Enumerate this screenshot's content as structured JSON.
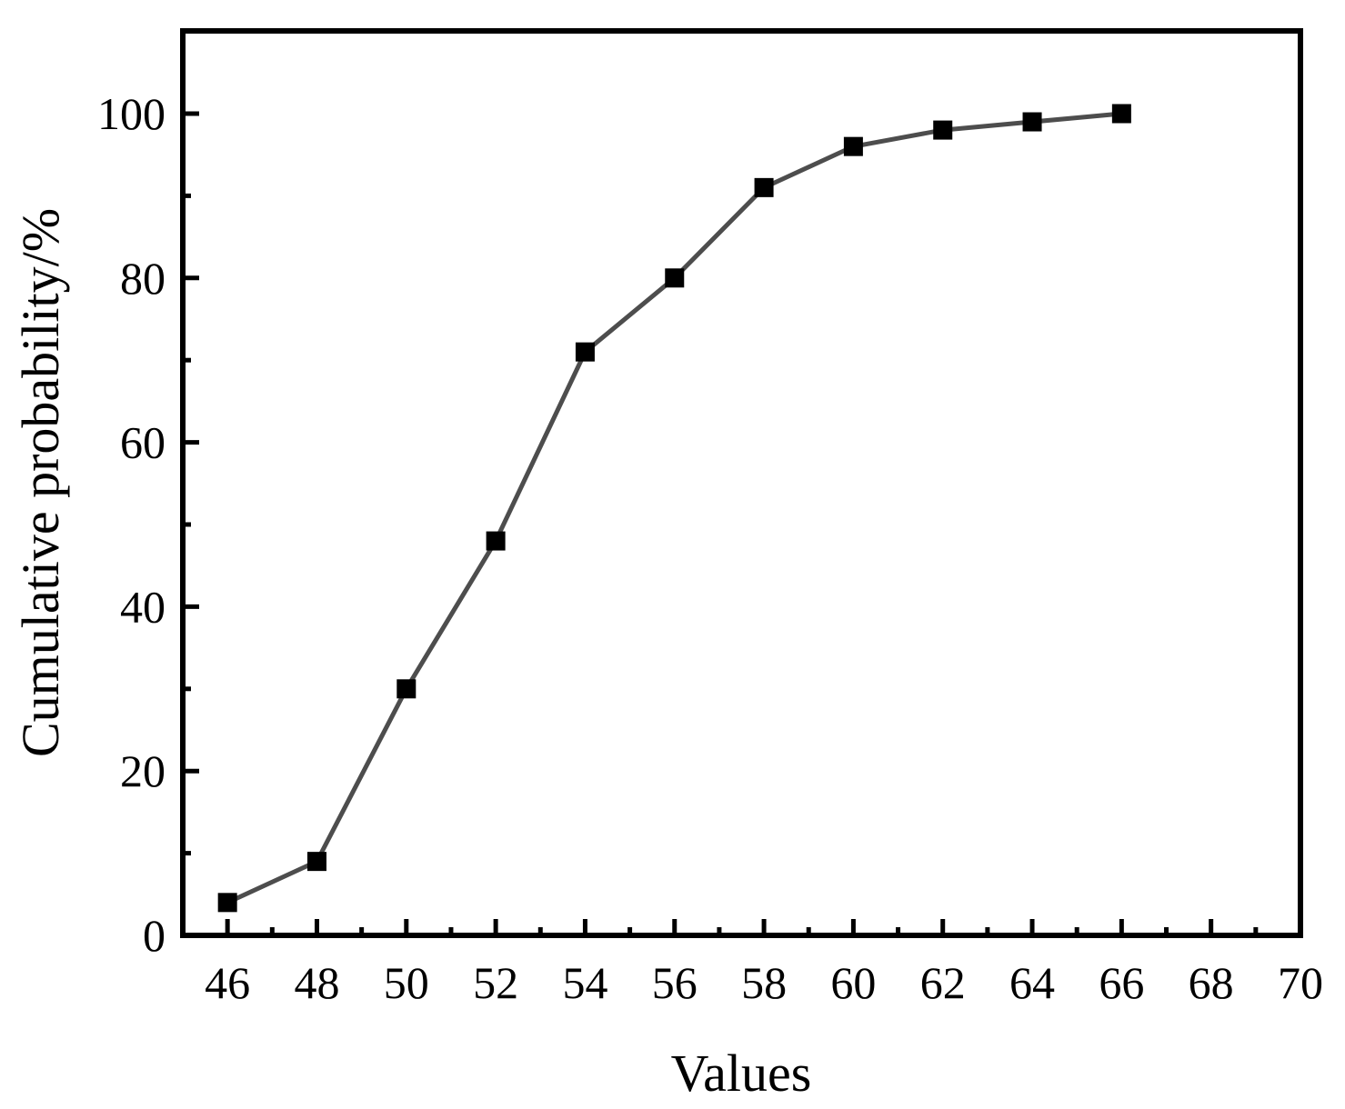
{
  "chart_data": {
    "type": "line",
    "title": "",
    "xlabel": "Values",
    "ylabel": "Cumulative probability/%",
    "xlim": [
      45,
      70
    ],
    "ylim": [
      0,
      110
    ],
    "x_major_ticks": [
      46,
      48,
      50,
      52,
      54,
      56,
      58,
      60,
      62,
      64,
      66,
      68,
      70
    ],
    "x_minor_ticks": [
      47,
      49,
      51,
      53,
      55,
      57,
      59,
      61,
      63,
      65,
      67,
      69
    ],
    "y_major_ticks": [
      0,
      20,
      40,
      60,
      80,
      100
    ],
    "y_minor_ticks": [
      10,
      30,
      50,
      70,
      90
    ],
    "grid": false,
    "legend": null,
    "series": [
      {
        "name": "Cumulative probability",
        "marker": "square",
        "line_color": "#4d4d4d",
        "marker_color": "#000000",
        "x": [
          46,
          48,
          50,
          52,
          54,
          56,
          58,
          60,
          62,
          64,
          66
        ],
        "values": [
          4,
          9,
          30,
          48,
          71,
          80,
          91,
          96,
          98,
          99,
          100
        ]
      }
    ]
  }
}
